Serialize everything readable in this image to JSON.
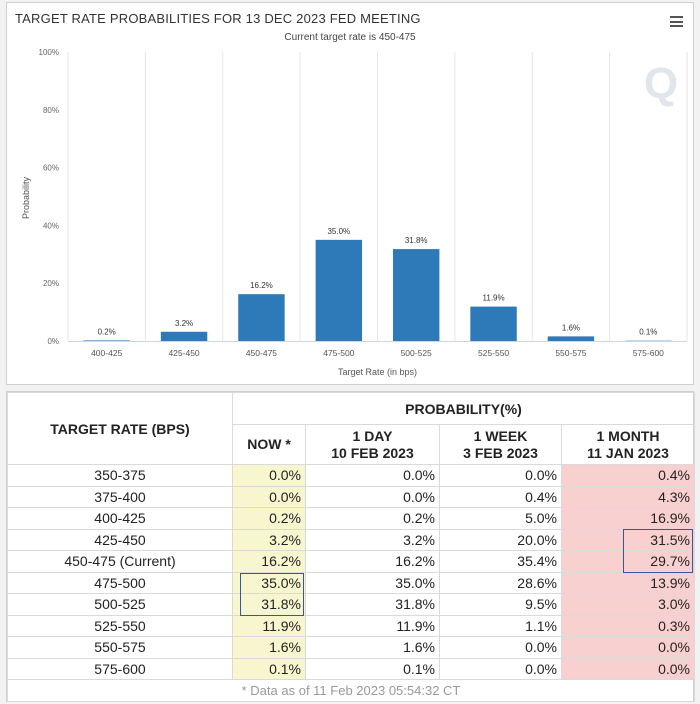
{
  "chart_data": {
    "type": "bar",
    "title": "TARGET RATE PROBABILITIES FOR 13 DEC 2023 FED MEETING",
    "subtitle": "Current target rate is 450-475",
    "categories": [
      "400-425",
      "425-450",
      "450-475",
      "475-500",
      "500-525",
      "525-550",
      "550-575",
      "575-600"
    ],
    "values": [
      0.2,
      3.2,
      16.2,
      35.0,
      31.8,
      11.9,
      1.6,
      0.1
    ],
    "data_labels": [
      "0.2%",
      "3.2%",
      "16.2%",
      "35.0%",
      "31.8%",
      "11.9%",
      "1.6%",
      "0.1%"
    ],
    "xlabel": "Target Rate (in bps)",
    "ylabel": "Probability",
    "ylim": [
      0,
      100
    ],
    "yticks": [
      0,
      20,
      40,
      60,
      80,
      100
    ],
    "ytick_labels": [
      "0%",
      "20%",
      "40%",
      "60%",
      "80%",
      "100%"
    ],
    "grid": "vertical",
    "bar_color": "#2e7ab8"
  },
  "menu_icon": "hamburger-menu-icon",
  "watermark": "Q",
  "table": {
    "header_target": "TARGET RATE (BPS)",
    "header_probability": "PROBABILITY(%)",
    "col_now": "NOW *",
    "col_day_line1": "1 DAY",
    "col_day_line2": "10 FEB 2023",
    "col_week_line1": "1 WEEK",
    "col_week_line2": "3 FEB 2023",
    "col_month_line1": "1 MONTH",
    "col_month_line2": "11 JAN 2023",
    "rows": [
      {
        "rate": "350-375",
        "now": "0.0%",
        "day": "0.0%",
        "week": "0.0%",
        "month": "0.4%"
      },
      {
        "rate": "375-400",
        "now": "0.0%",
        "day": "0.0%",
        "week": "0.4%",
        "month": "4.3%"
      },
      {
        "rate": "400-425",
        "now": "0.2%",
        "day": "0.2%",
        "week": "5.0%",
        "month": "16.9%"
      },
      {
        "rate": "425-450",
        "now": "3.2%",
        "day": "3.2%",
        "week": "20.0%",
        "month": "31.5%"
      },
      {
        "rate": "450-475 (Current)",
        "now": "16.2%",
        "day": "16.2%",
        "week": "35.4%",
        "month": "29.7%"
      },
      {
        "rate": "475-500",
        "now": "35.0%",
        "day": "35.0%",
        "week": "28.6%",
        "month": "13.9%"
      },
      {
        "rate": "500-525",
        "now": "31.8%",
        "day": "31.8%",
        "week": "9.5%",
        "month": "3.0%"
      },
      {
        "rate": "525-550",
        "now": "11.9%",
        "day": "11.9%",
        "week": "1.1%",
        "month": "0.3%"
      },
      {
        "rate": "550-575",
        "now": "1.6%",
        "day": "1.6%",
        "week": "0.0%",
        "month": "0.0%"
      },
      {
        "rate": "575-600",
        "now": "0.1%",
        "day": "0.1%",
        "week": "0.0%",
        "month": "0.0%"
      }
    ],
    "footnote": "* Data as of 11 Feb 2023 05:54:32 CT",
    "colors": {
      "now_bg": "#f7f6cf",
      "month_bg": "#f9d0d0",
      "highlight": "#34579e"
    }
  }
}
